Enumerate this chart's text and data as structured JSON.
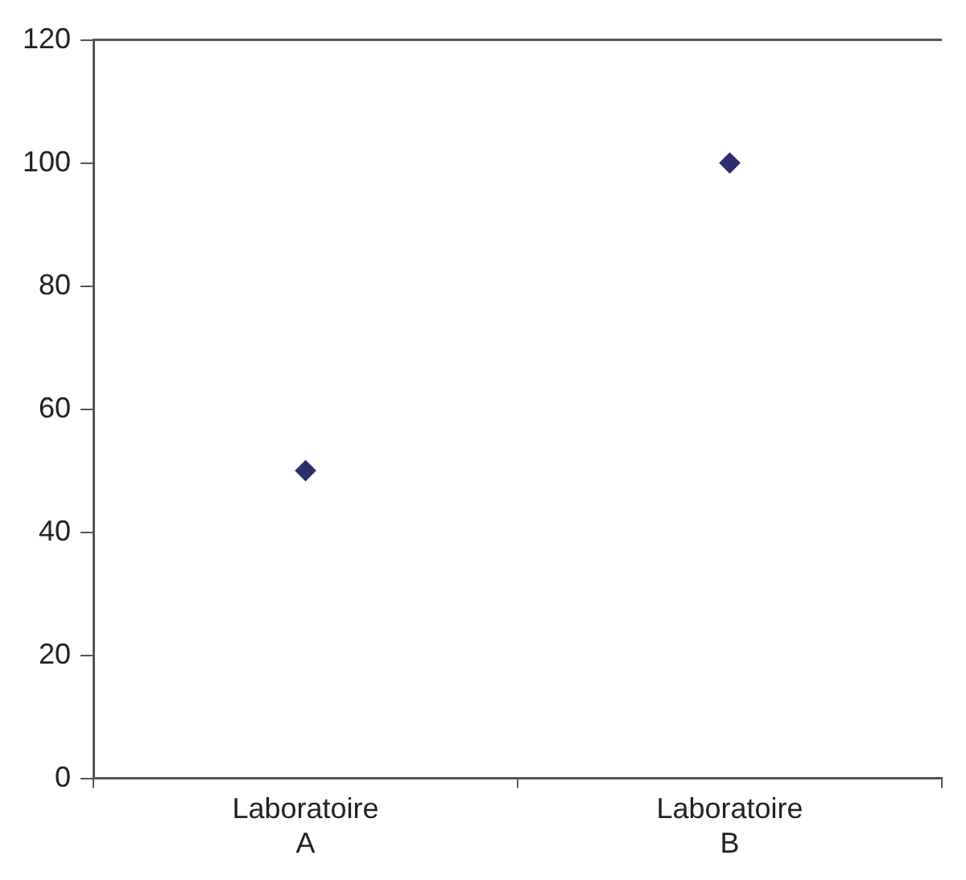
{
  "chart_data": {
    "type": "scatter",
    "categories": [
      "Laboratoire A",
      "Laboratoire B"
    ],
    "values": [
      50,
      100
    ],
    "color": "#2e2e6b",
    "marker": "diamond",
    "ylim": [
      0,
      120
    ],
    "yticks": [
      0,
      20,
      40,
      60,
      80,
      100,
      120
    ],
    "grid": false,
    "legend": false
  }
}
